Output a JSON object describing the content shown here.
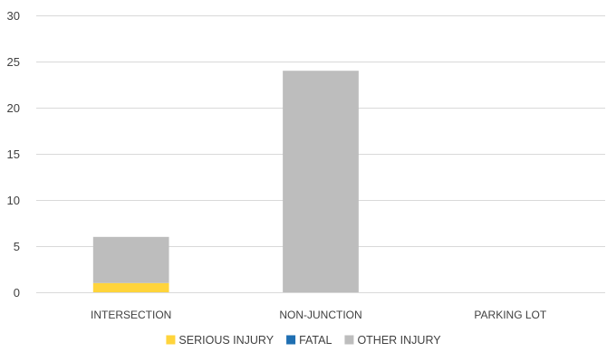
{
  "chart_data": {
    "type": "bar",
    "stacked": true,
    "title": "",
    "xlabel": "",
    "ylabel": "",
    "categories": [
      "INTERSECTION",
      "NON-JUNCTION",
      "PARKING LOT"
    ],
    "series": [
      {
        "name": "SERIOUS INJURY",
        "values": [
          1,
          0,
          0
        ],
        "color": "#FFD43B"
      },
      {
        "name": "FATAL",
        "values": [
          0,
          0,
          0
        ],
        "color": "#1F6FB2"
      },
      {
        "name": "OTHER INJURY",
        "values": [
          5,
          24,
          0
        ],
        "color": "#BDBDBD"
      }
    ],
    "ylim": [
      0,
      30
    ],
    "yticks": [
      0,
      5,
      10,
      15,
      20,
      25,
      30
    ],
    "grid": true,
    "legend": "bottom"
  }
}
